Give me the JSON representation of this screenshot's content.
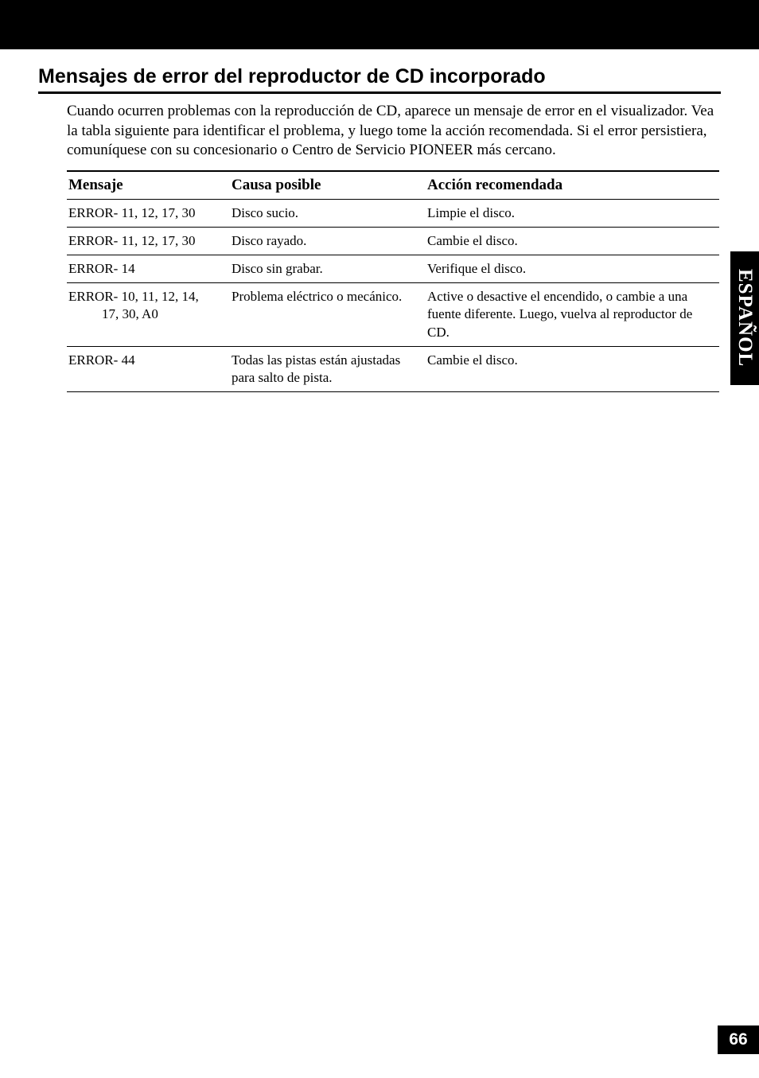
{
  "page": {
    "side_tab": "ESPAÑOL",
    "page_number": "66",
    "background_color": "#ffffff",
    "tab_bg": "#000000",
    "tab_fg": "#ffffff"
  },
  "section": {
    "title": "Mensajes de error del reproductor de CD incorporado",
    "title_fontsize": 25,
    "intro": "Cuando ocurren problemas con la reproducción de CD, aparece un mensaje de error en el visualizador. Vea la tabla siguiente para identificar el problema, y luego tome la acción recomendada. Si el error persistiera, comuníquese con su concesionario o Centro de Servicio PIONEER más cercano.",
    "intro_fontsize": 19
  },
  "table": {
    "headers": {
      "message": "Mensaje",
      "cause": "Causa posible",
      "action": "Acción recomendada"
    },
    "header_fontsize": 19,
    "cell_fontsize": 17,
    "border_color": "#000000",
    "rows": [
      {
        "message": "ERROR- 11, 12, 17, 30",
        "message_sub": "",
        "cause": "Disco sucio.",
        "action": "Limpie el disco."
      },
      {
        "message": "ERROR- 11, 12, 17, 30",
        "message_sub": "",
        "cause": "Disco rayado.",
        "action": "Cambie el disco."
      },
      {
        "message": "ERROR- 14",
        "message_sub": "",
        "cause": "Disco sin grabar.",
        "action": "Verifique el disco."
      },
      {
        "message": "ERROR- 10, 11, 12, 14,",
        "message_sub": "17, 30, A0",
        "cause": "Problema eléctrico o mecánico.",
        "action": "Active o desactive el encendido, o cambie a una fuente diferente. Luego, vuelva al reproductor de CD."
      },
      {
        "message": "ERROR- 44",
        "message_sub": "",
        "cause": "Todas las pistas están ajustadas para salto de pista.",
        "action": "Cambie el disco."
      }
    ]
  }
}
